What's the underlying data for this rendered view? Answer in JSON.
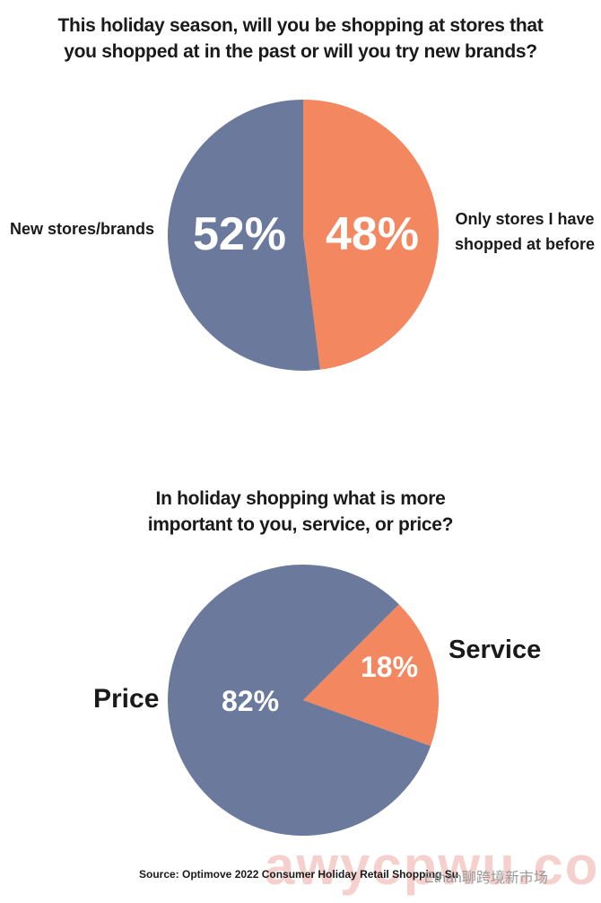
{
  "colors": {
    "blue": "#6b7a9c",
    "orange": "#f3875f",
    "text": "#1a1a1a",
    "white": "#ffffff"
  },
  "chart_data": [
    {
      "type": "pie",
      "title": [
        "This holiday season, will you be shopping at stores that",
        "you shopped at in the past or will you try new brands?"
      ],
      "slices": [
        {
          "label": "Only stores I have shopped at before",
          "label_lines": [
            "Only stores I have",
            "shopped at before"
          ],
          "value": 48,
          "display": "48%",
          "color": "#f3875f"
        },
        {
          "label": "New stores/brands",
          "value": 52,
          "display": "52%",
          "color": "#6b7a9c"
        }
      ]
    },
    {
      "type": "pie",
      "title": [
        "In holiday shopping what is more",
        "important to you, service, or price?"
      ],
      "slices": [
        {
          "label": "Service",
          "value": 18,
          "display": "18%",
          "color": "#f3875f"
        },
        {
          "label": "Price",
          "value": 82,
          "display": "82%",
          "color": "#6b7a9c"
        }
      ]
    }
  ],
  "source": "Source: Optimove 2022 Consumer Holiday Retail Shopping Su",
  "watermark": "Ethan聊跨境新市场",
  "watermark_big": "awycpwu.com"
}
